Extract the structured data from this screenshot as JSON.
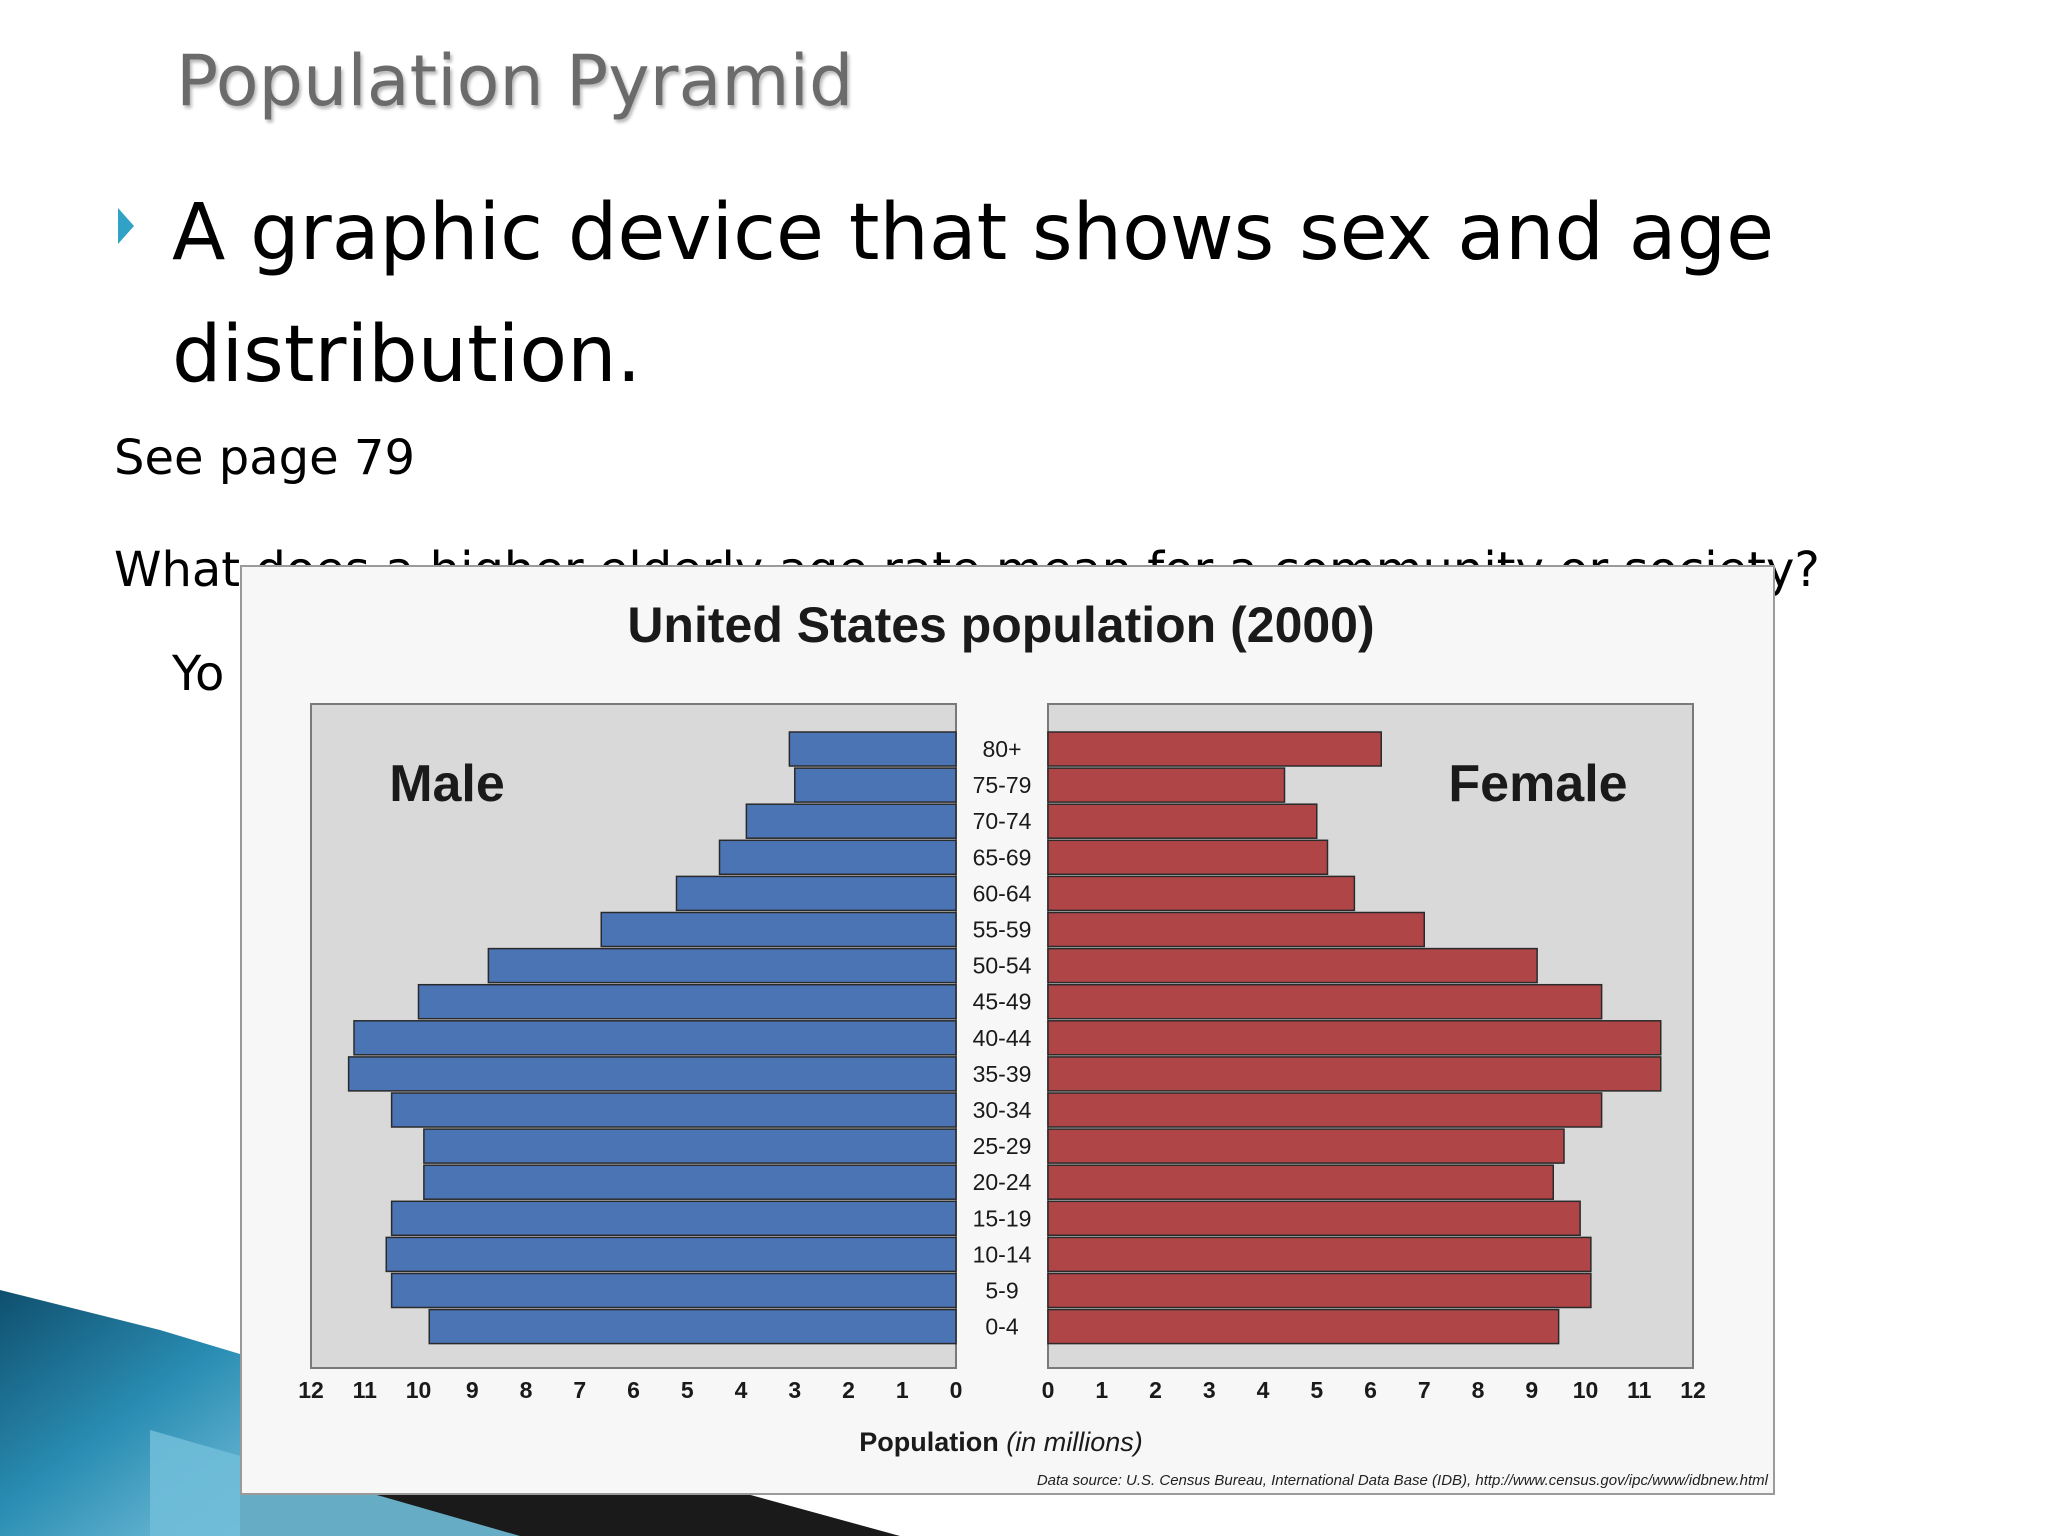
{
  "slide": {
    "title": "Population Pyramid",
    "bullet": "A graphic device that shows sex and age distribution.",
    "note1": "See page 79",
    "note2": "What does a higher elderly age rate mean for a community or society?",
    "note2_continued": "Yo"
  },
  "colors": {
    "bullet_arrow": "#2fa2c6",
    "male": "#4a74b4",
    "female": "#b04548",
    "plot_bg": "#d9d9d9"
  },
  "chart_data": {
    "type": "bar",
    "title": "United States population (2000)",
    "xlabel": "Population",
    "xlabel_suffix": "(in millions)",
    "source": "Data source: U.S. Census Bureau, International Data Base (IDB), http://www.census.gov/ipc/www/idbnew.html",
    "categories": [
      "80+",
      "75-79",
      "70-74",
      "65-69",
      "60-64",
      "55-59",
      "50-54",
      "45-49",
      "40-44",
      "35-39",
      "30-34",
      "25-29",
      "20-24",
      "15-19",
      "10-14",
      "5-9",
      "0-4"
    ],
    "series": [
      {
        "name": "Male",
        "values": [
          3.1,
          3.0,
          3.9,
          4.4,
          5.2,
          6.6,
          8.7,
          10.0,
          11.2,
          11.3,
          10.5,
          9.9,
          9.9,
          10.5,
          10.6,
          10.5,
          9.8
        ]
      },
      {
        "name": "Female",
        "values": [
          6.2,
          4.4,
          5.0,
          5.2,
          5.7,
          7.0,
          9.1,
          10.3,
          11.4,
          11.4,
          10.3,
          9.6,
          9.4,
          9.9,
          10.1,
          10.1,
          9.5
        ]
      }
    ],
    "xlim": [
      0,
      12
    ],
    "ticks": [
      0,
      1,
      2,
      3,
      4,
      5,
      6,
      7,
      8,
      9,
      10,
      11,
      12
    ],
    "grid": false
  }
}
